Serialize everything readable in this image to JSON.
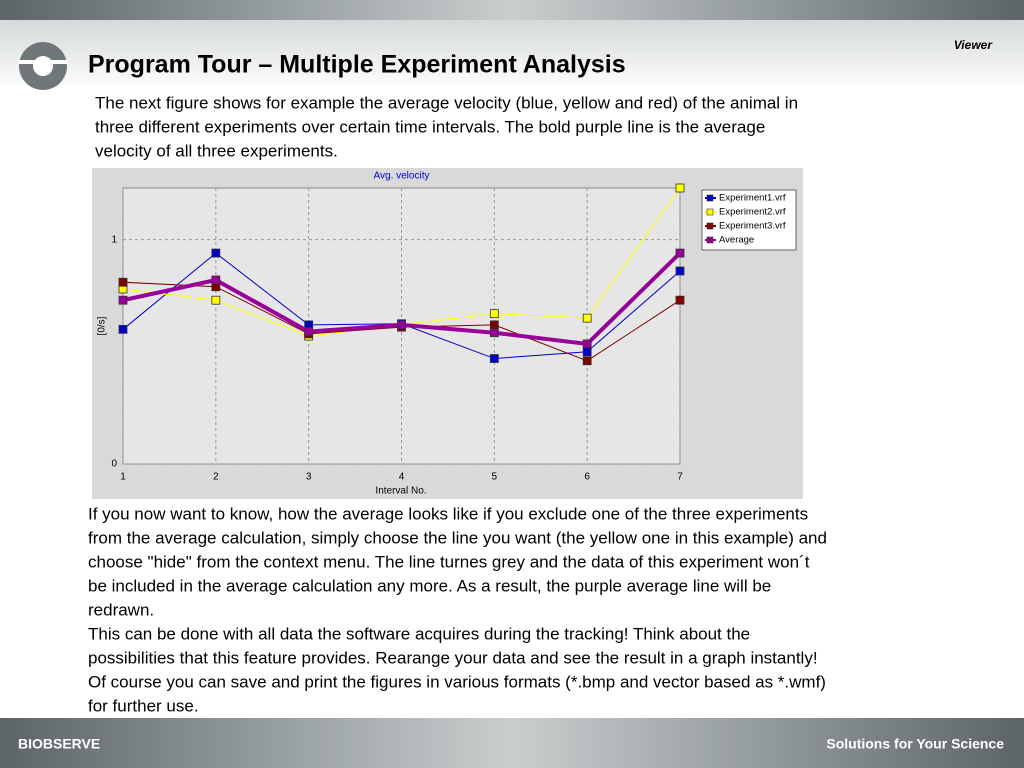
{
  "header": {
    "title": "Program Tour – Multiple Experiment Analysis",
    "tag": "Viewer"
  },
  "intro": {
    "lines": [
      "The next figure shows for example the average velocity (blue, yellow and red) of the animal in",
      "three different experiments over certain time intervals. The bold purple line is the average",
      "velocity of all three experiments."
    ]
  },
  "chart_data": {
    "type": "line",
    "title": "Avg. velocity",
    "x_label": "Interval No.",
    "y_label": "[0/s]",
    "x": [
      1,
      2,
      3,
      4,
      5,
      6,
      7
    ],
    "xlim": [
      1,
      7
    ],
    "xticks": [
      1,
      2,
      3,
      4,
      5,
      6,
      7
    ],
    "ylim": [
      0,
      1.23
    ],
    "yticks": [
      0,
      1
    ],
    "grid": true,
    "legend": "right",
    "series": [
      {
        "name": "Experiment1.vrf",
        "color": "#0000cc",
        "values": [
          0.6,
          0.94,
          0.62,
          0.625,
          0.47,
          0.5,
          0.86
        ]
      },
      {
        "name": "Experiment2.vrf",
        "color": "#ffff00",
        "values": [
          0.78,
          0.73,
          0.57,
          0.62,
          0.67,
          0.65,
          1.23
        ]
      },
      {
        "name": "Experiment3.vrf",
        "color": "#800000",
        "values": [
          0.81,
          0.79,
          0.58,
          0.61,
          0.62,
          0.46,
          0.73
        ]
      },
      {
        "name": "Average",
        "color": "#990099",
        "values": [
          0.73,
          0.82,
          0.59,
          0.62,
          0.585,
          0.535,
          0.94
        ]
      }
    ]
  },
  "body": {
    "lines": [
      "If you now want to know, how the average looks like if you exclude one of the three experiments",
      "from the average calculation, simply choose the line you want (the yellow one in this example) and",
      "choose \"hide\" from the context menu. The line turnes grey and the data of this experiment won´t",
      "be included in the average calculation any more. As a result, the purple average line will be",
      "redrawn.",
      "This can be done with all data the software acquires during the tracking! Think about the",
      "possibilities that this feature provides. Rearange your data and see the result in a graph instantly!",
      "Of course you can save and print the figures in various formats (*.bmp and vector based as *.wmf)",
      "for further use."
    ]
  },
  "footer": {
    "brand": "BIOBSERVE",
    "slogan": "Solutions for Your Science"
  }
}
